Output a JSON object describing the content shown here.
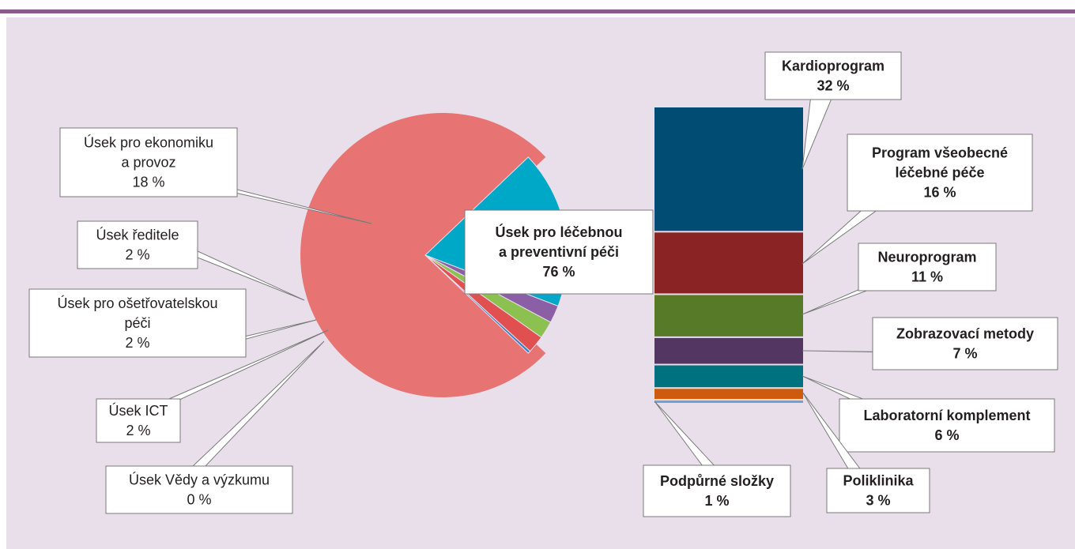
{
  "chart_data": [
    {
      "type": "pie",
      "title": "",
      "slices": [
        {
          "name": "Úsek pro léčebnou a preventivní péči",
          "label_lines": [
            "Úsek pro léčebnou",
            "a preventivní péči"
          ],
          "value": 76,
          "value_label": "76 %",
          "color": "#e87373"
        },
        {
          "name": "Úsek pro ekonomiku a provoz",
          "label_lines": [
            "Úsek pro ekonomiku",
            "a provoz"
          ],
          "value": 18,
          "value_label": "18 %",
          "color": "#00a8c8"
        },
        {
          "name": "Úsek ředitele",
          "label_lines": [
            "Úsek ředitele"
          ],
          "value": 2,
          "value_label": "2 %",
          "color": "#8b5fa5"
        },
        {
          "name": "Úsek pro ošetřovatelskou péči",
          "label_lines": [
            "Úsek pro ošetřovatelskou",
            "péči"
          ],
          "value": 2,
          "value_label": "2 %",
          "color": "#8cc152"
        },
        {
          "name": "Úsek ICT",
          "label_lines": [
            "Úsek ICT"
          ],
          "value": 2,
          "value_label": "2 %",
          "color": "#e05050"
        },
        {
          "name": "Úsek Vědy a výzkumu",
          "label_lines": [
            "Úsek Vědy a výzkumu"
          ],
          "value": 0.3,
          "value_label": "0 %",
          "color": "#3d7fc0"
        }
      ]
    },
    {
      "type": "bar",
      "stacked": true,
      "title": "",
      "segments": [
        {
          "name": "Kardioprogram",
          "label_lines": [
            "Kardioprogram"
          ],
          "value": 32,
          "value_label": "32 %",
          "color": "#004c73"
        },
        {
          "name": "Program všeobecné léčebné péče",
          "label_lines": [
            "Program všeobecné",
            "léčebné péče"
          ],
          "value": 16,
          "value_label": "16 %",
          "color": "#8a2424"
        },
        {
          "name": "Neuroprogram",
          "label_lines": [
            "Neuroprogram"
          ],
          "value": 11,
          "value_label": "11 %",
          "color": "#567a28"
        },
        {
          "name": "Zobrazovací metody",
          "label_lines": [
            "Zobrazovací metody"
          ],
          "value": 7,
          "value_label": "7 %",
          "color": "#533661"
        },
        {
          "name": "Laboratorní komplement",
          "label_lines": [
            "Laboratorní komplement"
          ],
          "value": 6,
          "value_label": "6 %",
          "color": "#00717e"
        },
        {
          "name": "Poliklinika",
          "label_lines": [
            "Poliklinika"
          ],
          "value": 3,
          "value_label": "3 %",
          "color": "#cd5a0d"
        },
        {
          "name": "Podpůrné složky",
          "label_lines": [
            "Podpůrné složky"
          ],
          "value": 1,
          "value_label": "1 %",
          "color": "#6aa2d8"
        }
      ]
    }
  ]
}
